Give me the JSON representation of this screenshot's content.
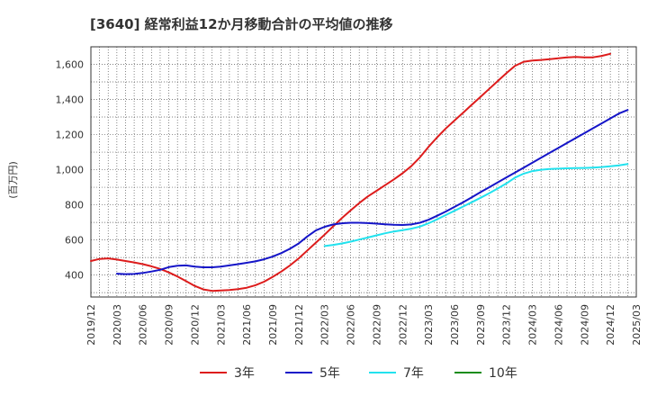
{
  "chart_data": {
    "type": "line",
    "title": "[3640]  経常利益12か月移動合計の平均値の推移",
    "ylabel": "(百万円)",
    "xlabel": "",
    "ylim": [
      275,
      1700
    ],
    "yticks": [
      400,
      600,
      800,
      1000,
      1200,
      1400,
      1600
    ],
    "ytick_labels": [
      "400",
      "600",
      "800",
      "1,000",
      "1,200",
      "1,400",
      "1,600"
    ],
    "x_months_range": [
      "2019-12",
      "2025-03"
    ],
    "xtick_labels": [
      "2019/12",
      "2020/03",
      "2020/06",
      "2020/09",
      "2020/12",
      "2021/03",
      "2021/06",
      "2021/09",
      "2021/12",
      "2022/03",
      "2022/06",
      "2022/09",
      "2022/12",
      "2023/03",
      "2023/06",
      "2023/09",
      "2023/12",
      "2024/03",
      "2024/06",
      "2024/09",
      "2024/12",
      "2025/03"
    ],
    "grid": true,
    "legend_position": "bottom",
    "series": [
      {
        "name": "3年",
        "color": "#dd1c1c",
        "points": [
          [
            "2019-12",
            480
          ],
          [
            "2020-01",
            492
          ],
          [
            "2020-02",
            495
          ],
          [
            "2020-03",
            488
          ],
          [
            "2020-04",
            480
          ],
          [
            "2020-05",
            472
          ],
          [
            "2020-06",
            462
          ],
          [
            "2020-07",
            450
          ],
          [
            "2020-08",
            435
          ],
          [
            "2020-09",
            415
          ],
          [
            "2020-10",
            392
          ],
          [
            "2020-11",
            365
          ],
          [
            "2020-12",
            338
          ],
          [
            "2021-01",
            318
          ],
          [
            "2021-02",
            310
          ],
          [
            "2021-03",
            312
          ],
          [
            "2021-04",
            315
          ],
          [
            "2021-05",
            320
          ],
          [
            "2021-06",
            328
          ],
          [
            "2021-07",
            342
          ],
          [
            "2021-08",
            362
          ],
          [
            "2021-09",
            390
          ],
          [
            "2021-10",
            420
          ],
          [
            "2021-11",
            455
          ],
          [
            "2021-12",
            495
          ],
          [
            "2022-01",
            540
          ],
          [
            "2022-02",
            585
          ],
          [
            "2022-03",
            630
          ],
          [
            "2022-04",
            678
          ],
          [
            "2022-05",
            725
          ],
          [
            "2022-06",
            768
          ],
          [
            "2022-07",
            810
          ],
          [
            "2022-08",
            848
          ],
          [
            "2022-09",
            880
          ],
          [
            "2022-10",
            912
          ],
          [
            "2022-11",
            945
          ],
          [
            "2022-12",
            980
          ],
          [
            "2023-01",
            1020
          ],
          [
            "2023-02",
            1070
          ],
          [
            "2023-03",
            1130
          ],
          [
            "2023-04",
            1185
          ],
          [
            "2023-05",
            1235
          ],
          [
            "2023-06",
            1280
          ],
          [
            "2023-07",
            1325
          ],
          [
            "2023-08",
            1370
          ],
          [
            "2023-09",
            1415
          ],
          [
            "2023-10",
            1460
          ],
          [
            "2023-11",
            1505
          ],
          [
            "2023-12",
            1550
          ],
          [
            "2024-01",
            1592
          ],
          [
            "2024-02",
            1615
          ],
          [
            "2024-03",
            1622
          ],
          [
            "2024-04",
            1625
          ],
          [
            "2024-05",
            1630
          ],
          [
            "2024-06",
            1635
          ],
          [
            "2024-07",
            1640
          ],
          [
            "2024-08",
            1642
          ],
          [
            "2024-09",
            1640
          ],
          [
            "2024-10",
            1640
          ],
          [
            "2024-11",
            1648
          ],
          [
            "2024-12",
            1660
          ]
        ]
      },
      {
        "name": "5年",
        "color": "#1515c8",
        "points": [
          [
            "2020-03",
            408
          ],
          [
            "2020-04",
            405
          ],
          [
            "2020-05",
            406
          ],
          [
            "2020-06",
            412
          ],
          [
            "2020-07",
            420
          ],
          [
            "2020-08",
            430
          ],
          [
            "2020-09",
            445
          ],
          [
            "2020-10",
            453
          ],
          [
            "2020-11",
            455
          ],
          [
            "2020-12",
            448
          ],
          [
            "2021-01",
            444
          ],
          [
            "2021-02",
            444
          ],
          [
            "2021-03",
            448
          ],
          [
            "2021-04",
            455
          ],
          [
            "2021-05",
            462
          ],
          [
            "2021-06",
            470
          ],
          [
            "2021-07",
            478
          ],
          [
            "2021-08",
            490
          ],
          [
            "2021-09",
            505
          ],
          [
            "2021-10",
            525
          ],
          [
            "2021-11",
            550
          ],
          [
            "2021-12",
            580
          ],
          [
            "2022-01",
            620
          ],
          [
            "2022-02",
            655
          ],
          [
            "2022-03",
            675
          ],
          [
            "2022-04",
            688
          ],
          [
            "2022-05",
            695
          ],
          [
            "2022-06",
            698
          ],
          [
            "2022-07",
            698
          ],
          [
            "2022-08",
            696
          ],
          [
            "2022-09",
            693
          ],
          [
            "2022-10",
            689
          ],
          [
            "2022-11",
            686
          ],
          [
            "2022-12",
            685
          ],
          [
            "2023-01",
            688
          ],
          [
            "2023-02",
            698
          ],
          [
            "2023-03",
            715
          ],
          [
            "2023-04",
            738
          ],
          [
            "2023-05",
            762
          ],
          [
            "2023-06",
            788
          ],
          [
            "2023-07",
            815
          ],
          [
            "2023-08",
            843
          ],
          [
            "2023-09",
            872
          ],
          [
            "2023-10",
            900
          ],
          [
            "2023-11",
            928
          ],
          [
            "2023-12",
            956
          ],
          [
            "2024-01",
            984
          ],
          [
            "2024-02",
            1012
          ],
          [
            "2024-03",
            1040
          ],
          [
            "2024-04",
            1068
          ],
          [
            "2024-05",
            1096
          ],
          [
            "2024-06",
            1124
          ],
          [
            "2024-07",
            1152
          ],
          [
            "2024-08",
            1180
          ],
          [
            "2024-09",
            1208
          ],
          [
            "2024-10",
            1236
          ],
          [
            "2024-11",
            1264
          ],
          [
            "2024-12",
            1292
          ],
          [
            "2025-01",
            1320
          ],
          [
            "2025-02",
            1340
          ]
        ]
      },
      {
        "name": "7年",
        "color": "#22e2ee",
        "points": [
          [
            "2022-03",
            565
          ],
          [
            "2022-04",
            572
          ],
          [
            "2022-05",
            580
          ],
          [
            "2022-06",
            590
          ],
          [
            "2022-07",
            602
          ],
          [
            "2022-08",
            614
          ],
          [
            "2022-09",
            626
          ],
          [
            "2022-10",
            638
          ],
          [
            "2022-11",
            648
          ],
          [
            "2022-12",
            656
          ],
          [
            "2023-01",
            664
          ],
          [
            "2023-02",
            676
          ],
          [
            "2023-03",
            695
          ],
          [
            "2023-04",
            718
          ],
          [
            "2023-05",
            742
          ],
          [
            "2023-06",
            766
          ],
          [
            "2023-07",
            790
          ],
          [
            "2023-08",
            815
          ],
          [
            "2023-09",
            840
          ],
          [
            "2023-10",
            866
          ],
          [
            "2023-11",
            893
          ],
          [
            "2023-12",
            922
          ],
          [
            "2024-01",
            955
          ],
          [
            "2024-02",
            978
          ],
          [
            "2024-03",
            992
          ],
          [
            "2024-04",
            1000
          ],
          [
            "2024-05",
            1004
          ],
          [
            "2024-06",
            1006
          ],
          [
            "2024-07",
            1008
          ],
          [
            "2024-08",
            1009
          ],
          [
            "2024-09",
            1010
          ],
          [
            "2024-10",
            1012
          ],
          [
            "2024-11",
            1015
          ],
          [
            "2024-12",
            1020
          ],
          [
            "2025-01",
            1025
          ],
          [
            "2025-02",
            1032
          ]
        ]
      },
      {
        "name": "10年",
        "color": "#1a8c1a",
        "points": []
      }
    ]
  }
}
